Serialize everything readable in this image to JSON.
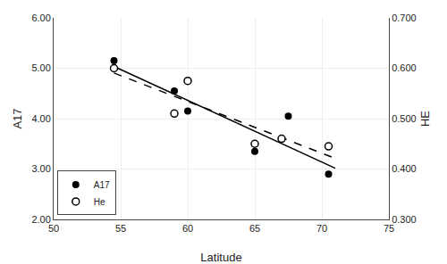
{
  "chart_data": {
    "type": "scatter",
    "xlabel": "Latitude",
    "ylabel": "A17",
    "y2label": "HE",
    "series": [
      {
        "type": "line",
        "x": [
          54.5,
          71.0
        ],
        "values": [
          5.0349,
          3.0151
        ],
        "color": "#000000",
        "line_style": "solid"
      },
      {
        "type": "line",
        "x": [
          54.5,
          71.0
        ],
        "values": [
          4.905,
          3.2112
        ],
        "color": "#000000",
        "line_style": "dashed"
      },
      {
        "name": "A17",
        "type": "scatter",
        "x": [
          54.5,
          59.0,
          60.0,
          65.0,
          67.5,
          70.5
        ],
        "values": [
          5.15,
          4.55,
          4.15,
          3.35,
          4.05,
          2.9
        ],
        "color": "#000000",
        "marker": "circle"
      },
      {
        "name": "He",
        "type": "scatter",
        "x": [
          54.5,
          59.0,
          60.0,
          65.0,
          67.0,
          70.5
        ],
        "values": [
          5.0,
          4.1,
          4.75,
          3.5,
          3.6,
          3.45
        ],
        "color": "#000000",
        "marker": "circle-open"
      }
    ],
    "xlim": [
      50,
      75
    ],
    "xticks": [
      50,
      55,
      60,
      65,
      70,
      75
    ],
    "ylim": [
      2.0,
      6.0
    ],
    "yticks": [
      {
        "value": 2,
        "label": "2.00"
      },
      {
        "value": 3,
        "label": "3.00"
      },
      {
        "value": 4,
        "label": "4.00"
      },
      {
        "value": 5,
        "label": "5.00"
      },
      {
        "value": 6,
        "label": "6.00"
      }
    ],
    "y2lim": [
      0.3,
      0.7
    ],
    "y2ticks": [
      {
        "value": 0.3,
        "label": "0.300"
      },
      {
        "value": 0.4,
        "label": "0.400"
      },
      {
        "value": 0.5,
        "label": "0.500"
      },
      {
        "value": 0.6,
        "label": "0.600"
      },
      {
        "value": 0.7,
        "label": "0.700"
      }
    ],
    "grid": true,
    "legend": "lower left"
  }
}
